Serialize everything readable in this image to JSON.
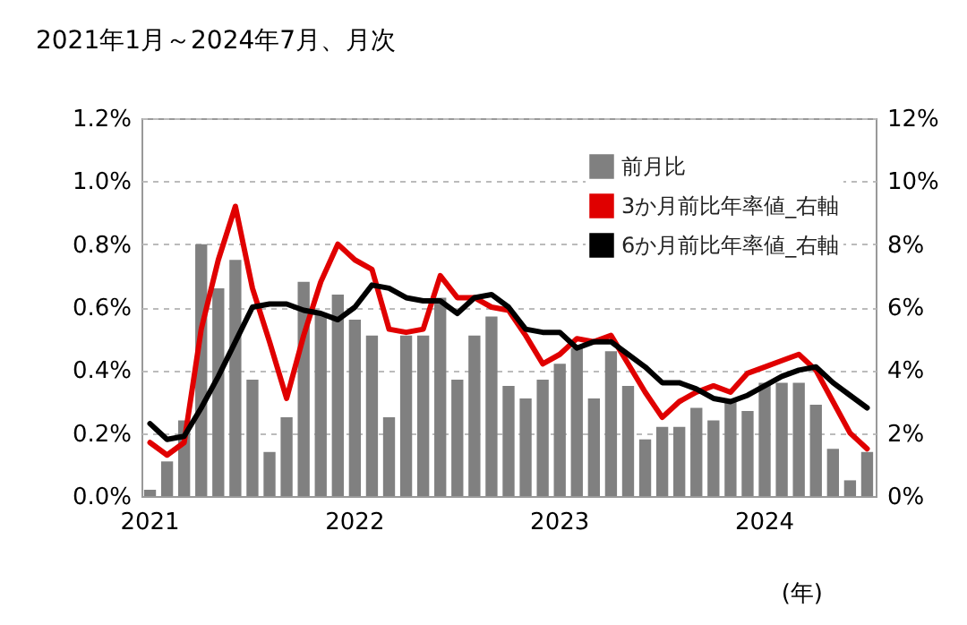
{
  "chart_data": {
    "type": "bar",
    "title": "2021年1月～2024年7月、月次",
    "xlabel": "(年)",
    "categories": [
      "2021",
      null,
      null,
      null,
      null,
      null,
      null,
      null,
      null,
      null,
      null,
      null,
      "2022",
      null,
      null,
      null,
      null,
      null,
      null,
      null,
      null,
      null,
      null,
      null,
      "2023",
      null,
      null,
      null,
      null,
      null,
      null,
      null,
      null,
      null,
      null,
      null,
      "2024",
      null,
      null,
      null,
      null,
      null,
      null
    ],
    "series": [
      {
        "name": "前月比",
        "color": "#808080",
        "values": [
          0.02,
          0.11,
          0.24,
          0.8,
          0.66,
          0.75,
          0.37,
          0.14,
          0.25,
          0.68,
          0.58,
          0.64,
          0.56,
          0.51,
          0.25,
          0.51,
          0.51,
          0.63,
          0.37,
          0.51,
          0.57,
          0.35,
          0.31,
          0.37,
          0.42,
          0.47,
          0.31,
          0.46,
          0.35,
          0.18,
          0.22,
          0.22,
          0.28,
          0.24,
          0.3,
          0.27,
          0.36,
          0.36,
          0.36,
          0.29,
          0.15,
          0.05,
          0.14
        ]
      },
      {
        "name": "3か月前比年率値_右軸",
        "type": "line",
        "axis": "y2",
        "color": "#e00000",
        "values": [
          1.7,
          1.3,
          1.7,
          5.3,
          7.5,
          9.2,
          6.6,
          4.9,
          3.1,
          5.1,
          6.8,
          8.0,
          7.5,
          7.2,
          5.3,
          5.2,
          5.3,
          7.0,
          6.3,
          6.3,
          6.0,
          5.9,
          5.1,
          4.2,
          4.5,
          5.0,
          4.9,
          5.1,
          4.2,
          3.3,
          2.5,
          3.0,
          3.3,
          3.5,
          3.3,
          3.9,
          4.1,
          4.3,
          4.5,
          4.0,
          3.0,
          2.0,
          1.5
        ]
      },
      {
        "name": "6か月前比年率値_右軸",
        "type": "line",
        "axis": "y2",
        "color": "#000000",
        "values": [
          2.3,
          1.8,
          1.9,
          2.8,
          3.8,
          4.9,
          6.0,
          6.1,
          6.1,
          5.9,
          5.8,
          5.6,
          6.0,
          6.7,
          6.6,
          6.3,
          6.2,
          6.2,
          5.8,
          6.3,
          6.4,
          6.0,
          5.3,
          5.2,
          5.2,
          4.7,
          4.9,
          4.9,
          4.5,
          4.1,
          3.6,
          3.6,
          3.4,
          3.1,
          3.0,
          3.2,
          3.5,
          3.8,
          4.0,
          4.1,
          3.6,
          3.2,
          2.8
        ]
      }
    ],
    "ylim": [
      0,
      1.2
    ],
    "yticks": [
      {
        "value": 0,
        "label": "0.0%"
      },
      {
        "value": 0.2,
        "label": "0.2%"
      },
      {
        "value": 0.4,
        "label": "0.4%"
      },
      {
        "value": 0.6,
        "label": "0.6%"
      },
      {
        "value": 0.8,
        "label": "0.8%"
      },
      {
        "value": 1.0,
        "label": "1.0%"
      },
      {
        "value": 1.2,
        "label": "1.2%"
      }
    ],
    "y2lim": [
      0,
      12
    ],
    "y2ticks": [
      {
        "value": 0,
        "label": "0%"
      },
      {
        "value": 2,
        "label": "2%"
      },
      {
        "value": 4,
        "label": "4%"
      },
      {
        "value": 6,
        "label": "6%"
      },
      {
        "value": 8,
        "label": "8%"
      },
      {
        "value": 10,
        "label": "10%"
      },
      {
        "value": 12,
        "label": "12%"
      }
    ],
    "grid": "y",
    "legend": "top right"
  }
}
